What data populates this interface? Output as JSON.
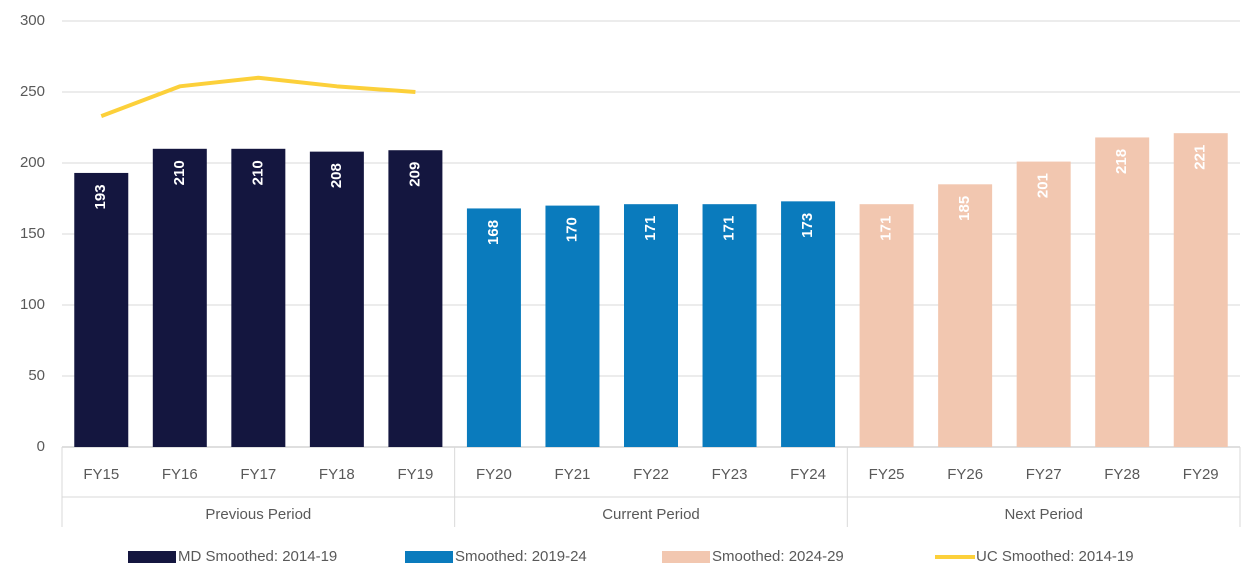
{
  "chart_data": {
    "type": "bar",
    "categories": [
      "FY15",
      "FY16",
      "FY17",
      "FY18",
      "FY19",
      "FY20",
      "FY21",
      "FY22",
      "FY23",
      "FY24",
      "FY25",
      "FY26",
      "FY27",
      "FY28",
      "FY29"
    ],
    "category_groups": [
      {
        "label": "Previous Period",
        "count": 5
      },
      {
        "label": "Current Period",
        "count": 5
      },
      {
        "label": "Next Period",
        "count": 5
      }
    ],
    "series": [
      {
        "name": "MD Smoothed: 2014-19",
        "type": "bar",
        "color": "#14163f",
        "values": [
          193,
          210,
          210,
          208,
          209,
          null,
          null,
          null,
          null,
          null,
          null,
          null,
          null,
          null,
          null
        ]
      },
      {
        "name": "Smoothed: 2019-24",
        "type": "bar",
        "color": "#0a7bbd",
        "values": [
          null,
          null,
          null,
          null,
          null,
          168,
          170,
          171,
          171,
          173,
          null,
          null,
          null,
          null,
          null
        ]
      },
      {
        "name": "Smoothed: 2024-29",
        "type": "bar",
        "color": "#f2c7b0",
        "values": [
          null,
          null,
          null,
          null,
          null,
          null,
          null,
          null,
          null,
          null,
          171,
          185,
          201,
          218,
          221
        ]
      },
      {
        "name": "UC Smoothed: 2014-19",
        "type": "line",
        "color": "#fcd03a",
        "values": [
          233,
          254,
          260,
          254,
          250,
          null,
          null,
          null,
          null,
          null,
          null,
          null,
          null,
          null,
          null
        ]
      }
    ],
    "ylim": [
      0,
      300
    ],
    "yticks": [
      0,
      50,
      100,
      150,
      200,
      250,
      300
    ],
    "grid": true,
    "legend": "bottom"
  }
}
